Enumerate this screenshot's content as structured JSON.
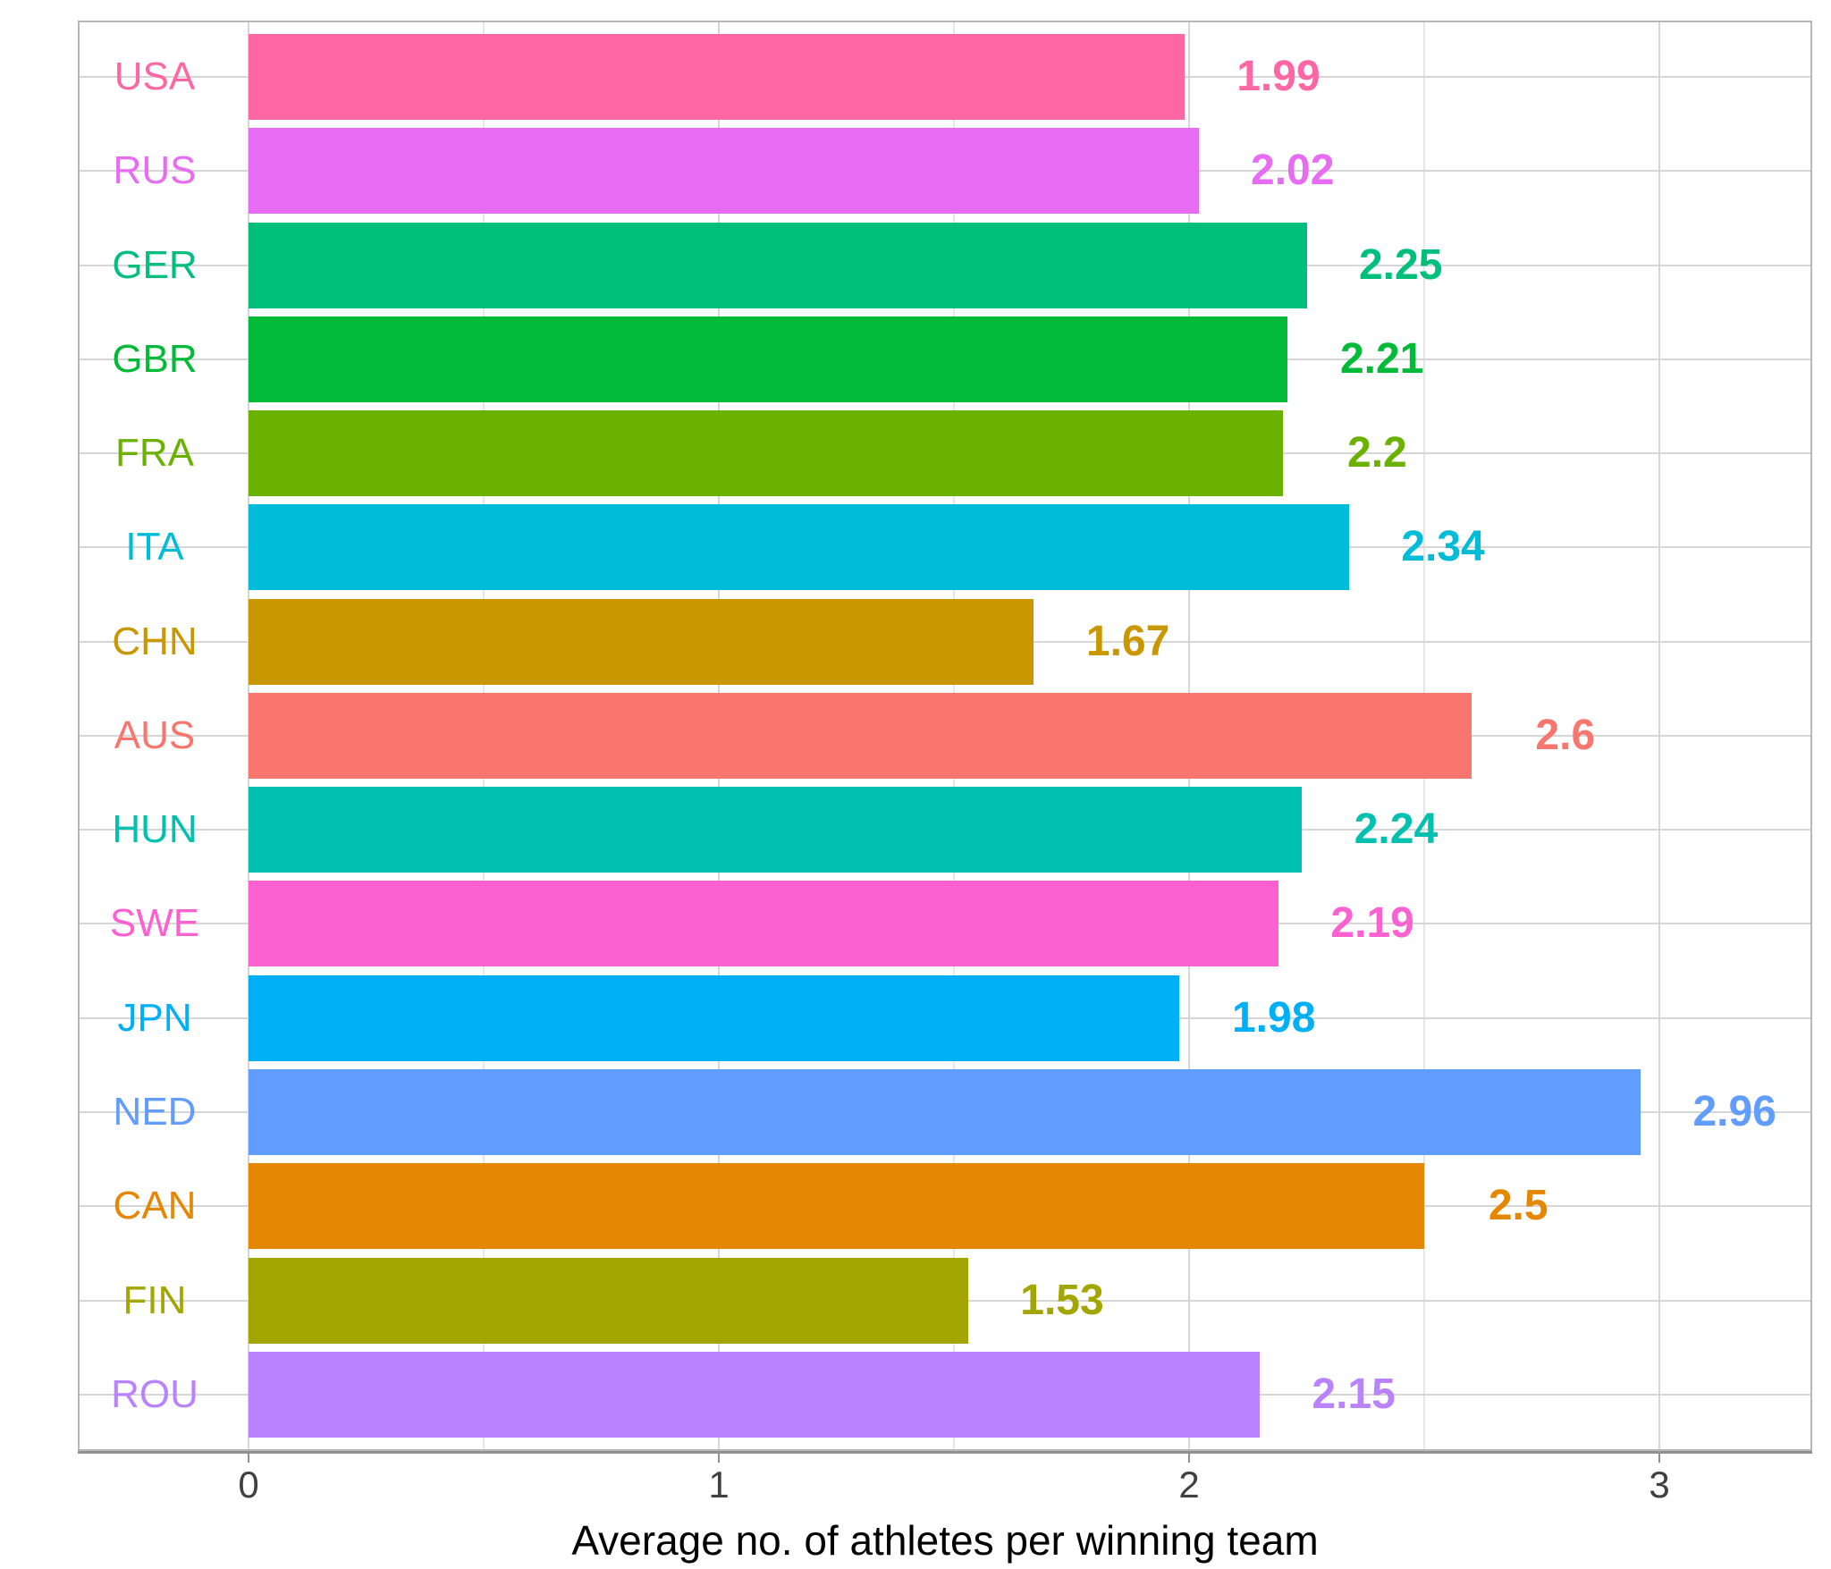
{
  "chart_data": {
    "type": "bar",
    "orientation": "horizontal",
    "categories": [
      "USA",
      "RUS",
      "GER",
      "GBR",
      "FRA",
      "ITA",
      "CHN",
      "AUS",
      "HUN",
      "SWE",
      "JPN",
      "NED",
      "CAN",
      "FIN",
      "ROU"
    ],
    "values": [
      1.99,
      2.02,
      2.25,
      2.21,
      2.2,
      2.34,
      1.67,
      2.6,
      2.24,
      2.19,
      1.98,
      2.96,
      2.5,
      1.53,
      2.15
    ],
    "value_labels": [
      "1.99",
      "2.02",
      "2.25",
      "2.21",
      "2.2",
      "2.34",
      "1.67",
      "2.6",
      "2.24",
      "2.19",
      "1.98",
      "2.96",
      "2.5",
      "1.53",
      "2.15"
    ],
    "colors": [
      "#FF67A4",
      "#E76BF3",
      "#00BF7D",
      "#00BA38",
      "#6BB100",
      "#00BCD8",
      "#C99800",
      "#F8766D",
      "#00C0AF",
      "#FD61D1",
      "#00B0F6",
      "#619CFF",
      "#E58700",
      "#A3A500",
      "#B983FF"
    ],
    "xlabel": "Average no. of athletes per winning team",
    "xticks": [
      "0",
      "1",
      "2",
      "3"
    ],
    "xlim": [
      -0.363,
      3.325
    ],
    "grid": true,
    "legend": false
  }
}
